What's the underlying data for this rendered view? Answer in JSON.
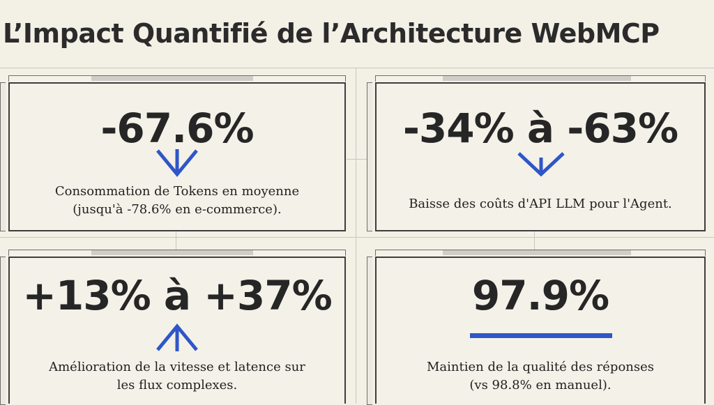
{
  "title": "L’Impact Quantifié de l’Architecture WebMCP",
  "accent_color": "#2f56c8",
  "cards": [
    {
      "value": "-67.6%",
      "icon": "arrow-down-icon",
      "desc_line1": "Consommation de Tokens en moyenne",
      "desc_line2": "(jusqu'à -78.6% en e-commerce)."
    },
    {
      "value": "-34% à -63%",
      "icon": "chevron-down-icon",
      "desc_line1": "Baisse des coûts d'API LLM pour l'Agent.",
      "desc_line2": ""
    },
    {
      "value": "+13% à +37%",
      "icon": "arrow-up-icon",
      "desc_line1": "Amélioration de la vitesse et latence sur",
      "desc_line2": "les flux complexes."
    },
    {
      "value": "97.9%",
      "icon": "horizontal-bar-icon",
      "desc_line1": "Maintien de la qualité des réponses",
      "desc_line2": "(vs 98.8% en manuel)."
    }
  ]
}
